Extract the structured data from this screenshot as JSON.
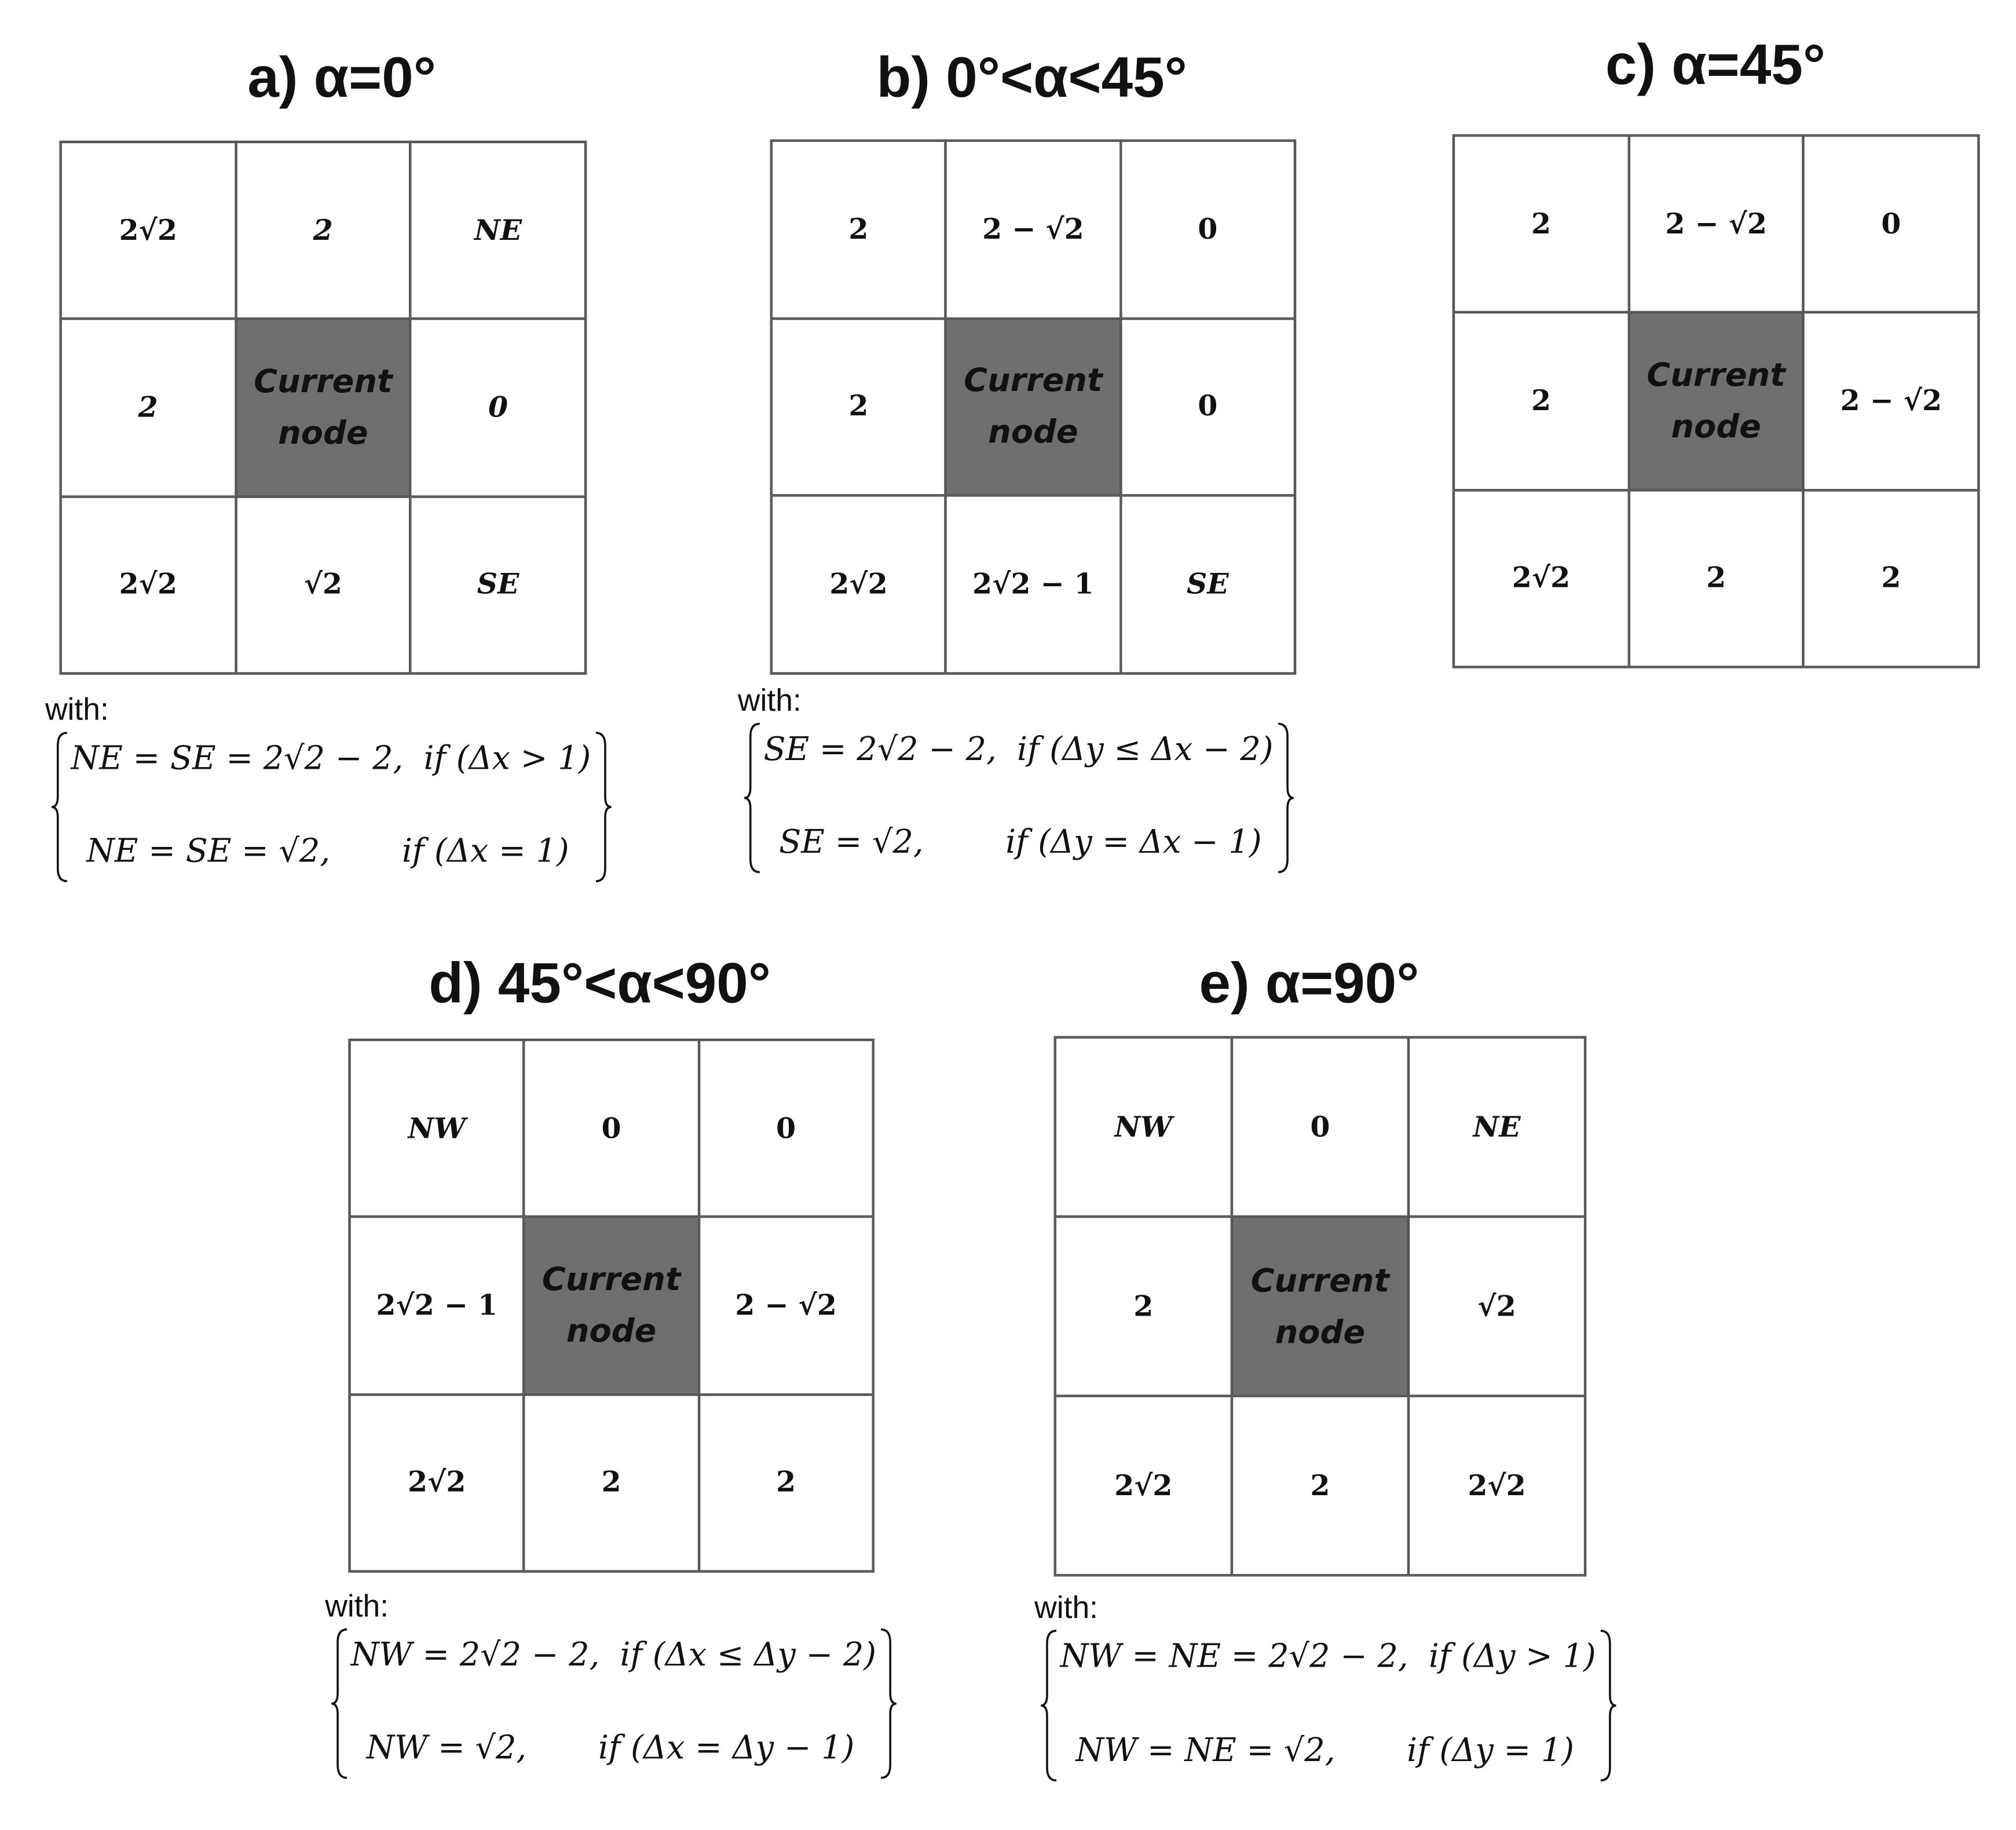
{
  "panels": [
    {
      "id": "a",
      "title": "a)  α=0°",
      "cells": [
        {
          "t": "2√2"
        },
        {
          "t": "2",
          "it": true
        },
        {
          "t": "NE",
          "it": true
        },
        {
          "t": "2",
          "it": true
        },
        {
          "t": "Current\nnode",
          "cur": true
        },
        {
          "t": "0",
          "it": true
        },
        {
          "t": "2√2"
        },
        {
          "t": "√2"
        },
        {
          "t": "SE",
          "it": true
        }
      ],
      "with": "with:",
      "formulas": [
        "NE = SE = 2√2 − 2,  if (Δx > 1)",
        "NE = SE = √2,       if (Δx = 1)"
      ]
    },
    {
      "id": "b",
      "title": "b)  0°<α<45°",
      "cells": [
        {
          "t": "2"
        },
        {
          "t": "2 − √2"
        },
        {
          "t": "0"
        },
        {
          "t": "2"
        },
        {
          "t": "Current\nnode",
          "cur": true
        },
        {
          "t": "0"
        },
        {
          "t": "2√2"
        },
        {
          "t": "2√2 − 1"
        },
        {
          "t": "SE",
          "it": true
        }
      ],
      "with": "with:",
      "formulas": [
        "SE = 2√2 − 2,  if (Δy ≤ Δx − 2)",
        "SE = √2,        if (Δy = Δx − 1)"
      ]
    },
    {
      "id": "c",
      "title": "c)  α=45°",
      "cells": [
        {
          "t": "2"
        },
        {
          "t": "2 − √2"
        },
        {
          "t": "0"
        },
        {
          "t": "2"
        },
        {
          "t": "Current\nnode",
          "cur": true
        },
        {
          "t": "2 − √2"
        },
        {
          "t": "2√2"
        },
        {
          "t": "2"
        },
        {
          "t": "2"
        }
      ]
    },
    {
      "id": "d",
      "title": "d)  45°<α<90°",
      "cells": [
        {
          "t": "NW",
          "it": true
        },
        {
          "t": "0"
        },
        {
          "t": "0"
        },
        {
          "t": "2√2 − 1"
        },
        {
          "t": "Current\nnode",
          "cur": true
        },
        {
          "t": "2 − √2"
        },
        {
          "t": "2√2"
        },
        {
          "t": "2"
        },
        {
          "t": "2"
        }
      ],
      "with": "with:",
      "formulas": [
        "NW = 2√2 − 2,  if (Δx ≤ Δy − 2)",
        "NW = √2,       if (Δx = Δy − 1)"
      ]
    },
    {
      "id": "e",
      "title": "e)  α=90°",
      "cells": [
        {
          "t": "NW",
          "it": true
        },
        {
          "t": "0"
        },
        {
          "t": "NE",
          "it": true
        },
        {
          "t": "2"
        },
        {
          "t": "Current\nnode",
          "cur": true
        },
        {
          "t": "√2"
        },
        {
          "t": "2√2"
        },
        {
          "t": "2"
        },
        {
          "t": "2√2"
        }
      ],
      "with": "with:",
      "formulas": [
        "NW = NE = 2√2 − 2,  if (Δy > 1)",
        "NW = NE = √2,       if (Δy = 1)"
      ]
    }
  ],
  "colors": {
    "current_node": "#6f6f6f",
    "grid_line": "#555555"
  }
}
